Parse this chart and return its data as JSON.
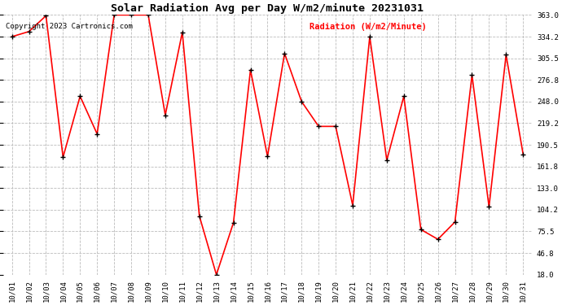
{
  "title": "Solar Radiation Avg per Day W/m2/minute 20231031",
  "copyright_text": "Copyright 2023 Cartronics.com",
  "legend_text": "Radiation (W/m2/Minute)",
  "dates": [
    "10/01",
    "10/02",
    "10/03",
    "10/04",
    "10/05",
    "10/06",
    "10/07",
    "10/08",
    "10/09",
    "10/10",
    "10/11",
    "10/12",
    "10/13",
    "10/14",
    "10/15",
    "10/16",
    "10/17",
    "10/18",
    "10/19",
    "10/20",
    "10/21",
    "10/22",
    "10/23",
    "10/24",
    "10/25",
    "10/26",
    "10/27",
    "10/28",
    "10/29",
    "10/30",
    "10/31"
  ],
  "values": [
    334.2,
    341.0,
    362.0,
    174.0,
    255.0,
    205.0,
    363.0,
    363.0,
    363.0,
    230.0,
    340.0,
    96.0,
    18.0,
    87.0,
    290.0,
    175.0,
    312.0,
    248.0,
    215.0,
    215.0,
    110.0,
    334.2,
    170.0,
    255.0,
    78.0,
    65.0,
    88.0,
    283.0,
    108.0,
    310.0,
    178.0
  ],
  "yticks": [
    18.0,
    46.8,
    75.5,
    104.2,
    133.0,
    161.8,
    190.5,
    219.2,
    248.0,
    276.8,
    305.5,
    334.2,
    363.0
  ],
  "ylim": [
    18.0,
    363.0
  ],
  "line_color": "#ff0000",
  "marker_color": "#000000",
  "grid_color": "#bbbbbb",
  "background_color": "#ffffff",
  "title_fontsize": 9.5,
  "legend_fontsize": 7.5,
  "copyright_fontsize": 6.5,
  "tick_fontsize": 6.5,
  "fig_width": 6.9,
  "fig_height": 3.75,
  "dpi": 100
}
